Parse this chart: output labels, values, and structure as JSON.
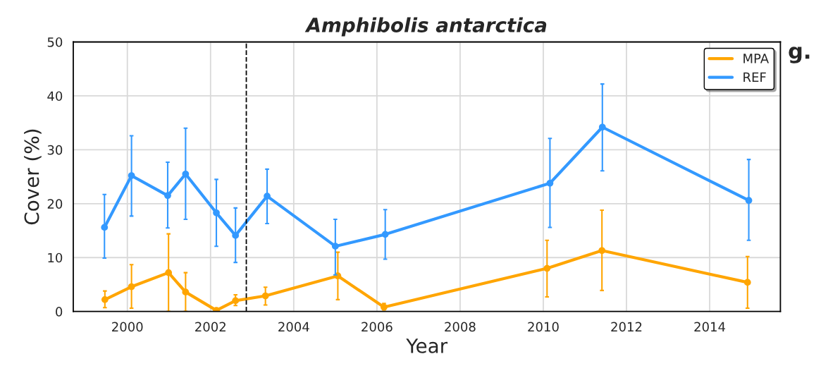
{
  "chart_data": {
    "type": "line",
    "title": "Amphibolis antarctica",
    "xlabel": "Year",
    "ylabel": "Cover (%)",
    "annotations": [
      "g."
    ],
    "xlim": [
      1998.7,
      2015.7
    ],
    "xticks": [
      2000,
      2002,
      2004,
      2006,
      2008,
      2010,
      2012,
      2014
    ],
    "ylim": [
      0,
      50
    ],
    "yticks": [
      0,
      10,
      20,
      30,
      40,
      50
    ],
    "grid": true,
    "legend": "top right",
    "marker": "circle",
    "line_style": "solid",
    "ref_lines": [
      {
        "axis": "x",
        "value": 2002.86,
        "color": "#000000",
        "line_style": "dashed"
      }
    ],
    "series": [
      {
        "name": "MPA",
        "color": "#ffa500",
        "x": [
          1999.46,
          2000.1,
          2000.99,
          2001.4,
          2002.14,
          2002.6,
          2003.32,
          2005.06,
          2006.17,
          2010.09,
          2011.41,
          2014.91
        ],
        "values": [
          2.2,
          4.6,
          7.2,
          3.6,
          0.2,
          2.0,
          2.9,
          6.6,
          0.8,
          8.0,
          11.3,
          5.4
        ],
        "errors": [
          [
            0.7,
            3.8
          ],
          [
            0.6,
            8.7
          ],
          [
            0,
            14.4
          ],
          [
            0,
            7.2
          ],
          [
            0,
            0.5
          ],
          [
            1.1,
            3.1
          ],
          [
            1.2,
            4.5
          ],
          [
            2.2,
            11.0
          ],
          [
            0.3,
            1.5
          ],
          [
            2.7,
            13.2
          ],
          [
            3.9,
            18.8
          ],
          [
            0.6,
            10.2
          ]
        ]
      },
      {
        "name": "REF",
        "color": "#3399ff",
        "x": [
          1999.45,
          2000.1,
          2000.97,
          2001.4,
          2002.14,
          2002.6,
          2003.36,
          2005.0,
          2006.2,
          2010.16,
          2011.42,
          2014.94
        ],
        "values": [
          15.6,
          25.2,
          21.5,
          25.5,
          18.3,
          14.1,
          21.4,
          12.1,
          14.3,
          23.8,
          34.2,
          20.6
        ],
        "errors": [
          [
            9.9,
            21.7
          ],
          [
            17.7,
            32.6
          ],
          [
            15.5,
            27.7
          ],
          [
            17.1,
            34.0
          ],
          [
            12.1,
            24.5
          ],
          [
            9.1,
            19.2
          ],
          [
            16.3,
            26.4
          ],
          [
            6.8,
            17.1
          ],
          [
            9.7,
            18.9
          ],
          [
            15.6,
            32.1
          ],
          [
            26.1,
            42.2
          ],
          [
            13.2,
            28.2
          ]
        ]
      }
    ]
  }
}
